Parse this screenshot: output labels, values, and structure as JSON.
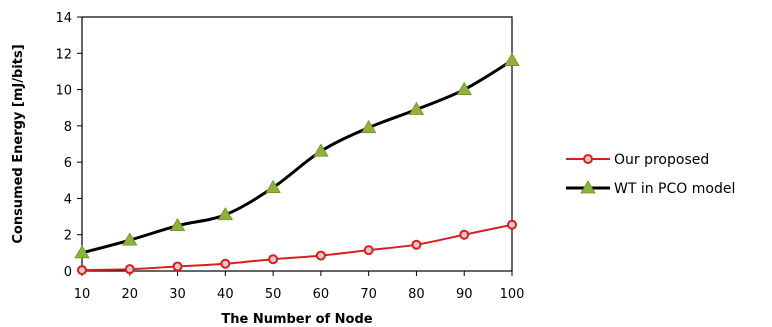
{
  "chart_data": {
    "type": "line",
    "xlabel": "The Number of Node",
    "ylabel": "Consumed Energy [mJ/bits]",
    "x": [
      10,
      20,
      30,
      40,
      50,
      60,
      70,
      80,
      90,
      100
    ],
    "xlim": [
      10,
      100
    ],
    "ylim": [
      0,
      14
    ],
    "xticks": [
      "10",
      "20",
      "30",
      "40",
      "50",
      "60",
      "70",
      "80",
      "90",
      "100"
    ],
    "yticks": [
      "0",
      "2",
      "4",
      "6",
      "8",
      "10",
      "12",
      "14"
    ],
    "grid": false,
    "legend_position": "right",
    "series": [
      {
        "name": "Our proposed",
        "color": "#d62020",
        "marker": "circle",
        "values": [
          0.05,
          0.1,
          0.25,
          0.4,
          0.65,
          0.85,
          1.15,
          1.45,
          2.0,
          2.55
        ]
      },
      {
        "name": "WT in PCO model",
        "color": "#000000",
        "marker": "triangle",
        "marker_color": "#8fb33a",
        "values": [
          1.0,
          1.7,
          2.5,
          3.1,
          4.6,
          6.6,
          7.9,
          8.9,
          10.0,
          11.6
        ]
      }
    ]
  }
}
